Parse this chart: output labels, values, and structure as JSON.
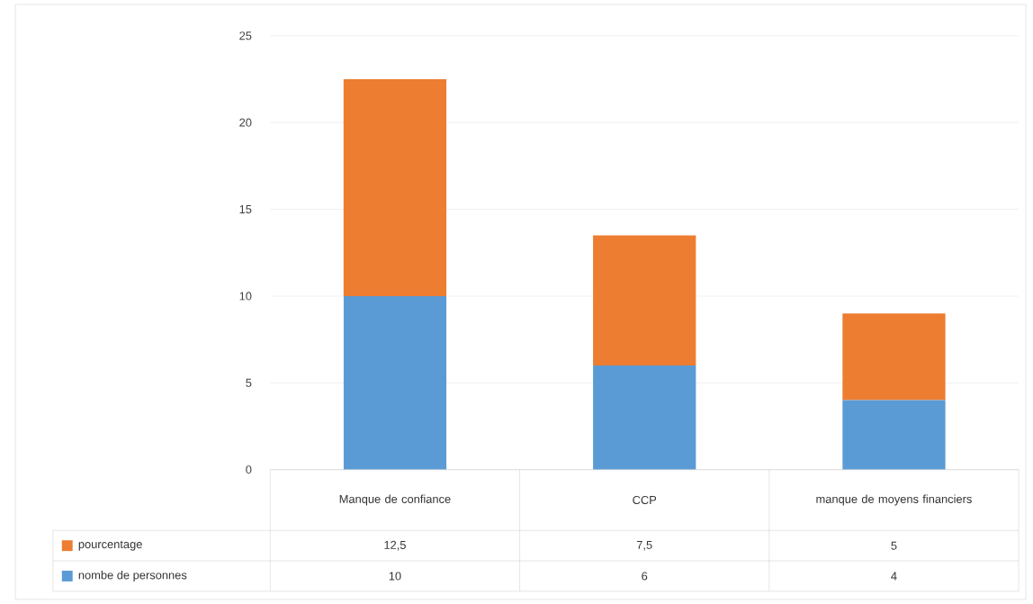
{
  "chart_data": {
    "type": "bar",
    "stacked": true,
    "legend": "bottom left",
    "grid": "y",
    "categories": [
      "Manque de confiance",
      "CCP",
      "manque de moyens financiers"
    ],
    "series": [
      {
        "name": "nombe de personnes",
        "color": "#5b9bd5",
        "values": [
          10,
          6,
          4
        ],
        "value_labels": [
          "10",
          "6",
          "4"
        ]
      },
      {
        "name": "pourcentage",
        "color": "#ed7d31",
        "values": [
          12.5,
          7.5,
          5
        ],
        "value_labels": [
          "12,5",
          "7,5",
          "5"
        ]
      }
    ],
    "ylim": [
      0,
      25
    ],
    "yticks": [
      0,
      5,
      10,
      15,
      20,
      25
    ]
  }
}
